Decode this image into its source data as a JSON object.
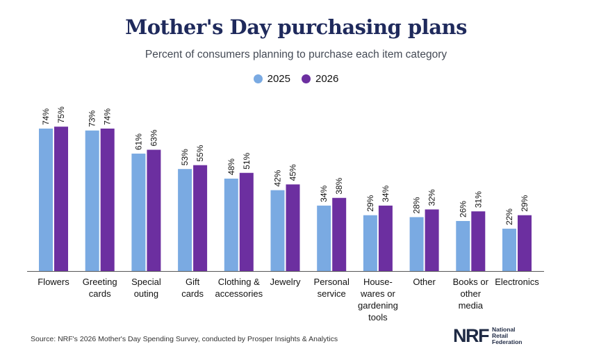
{
  "colors": {
    "series_2025": "#7aaae2",
    "series_2026": "#6c2fa0",
    "axis": "#555555",
    "title": "#1f2a5c"
  },
  "chart_data": {
    "type": "bar",
    "title": "Mother's Day purchasing plans",
    "subtitle": "Percent of consumers planning to purchase each item category",
    "legend_position": "top-center",
    "grid": false,
    "ylim": [
      0,
      80
    ],
    "categories": [
      [
        "Flowers"
      ],
      [
        "Greeting",
        "cards"
      ],
      [
        "Special",
        "outing"
      ],
      [
        "Gift",
        "cards"
      ],
      [
        "Clothing &",
        "accessories"
      ],
      [
        "Jewelry"
      ],
      [
        "Personal",
        "service"
      ],
      [
        "House-",
        "wares or",
        "gardening",
        "tools"
      ],
      [
        "Other"
      ],
      [
        "Books or",
        "other",
        "media"
      ],
      [
        "Electronics"
      ]
    ],
    "series": [
      {
        "name": "2025",
        "values": [
          74,
          73,
          61,
          53,
          48,
          42,
          34,
          29,
          28,
          26,
          22
        ],
        "labels": [
          "74%",
          "73%",
          "61%",
          "53%",
          "48%",
          "42%",
          "34%",
          "29%",
          "28%",
          "26%",
          "22%"
        ]
      },
      {
        "name": "2026",
        "values": [
          75,
          74,
          63,
          55,
          51,
          45,
          38,
          34,
          32,
          31,
          29
        ],
        "labels": [
          "75%",
          "74%",
          "63%",
          "55%",
          "51%",
          "45%",
          "38%",
          "34%",
          "32%",
          "31%",
          "29%"
        ]
      }
    ]
  },
  "source": "Source: NRF's 2026 Mother's Day Spending Survey, conducted by Prosper Insights & Analytics",
  "logo": {
    "mark": "NRF",
    "lines": [
      "National",
      "Retail",
      "Federation"
    ]
  }
}
